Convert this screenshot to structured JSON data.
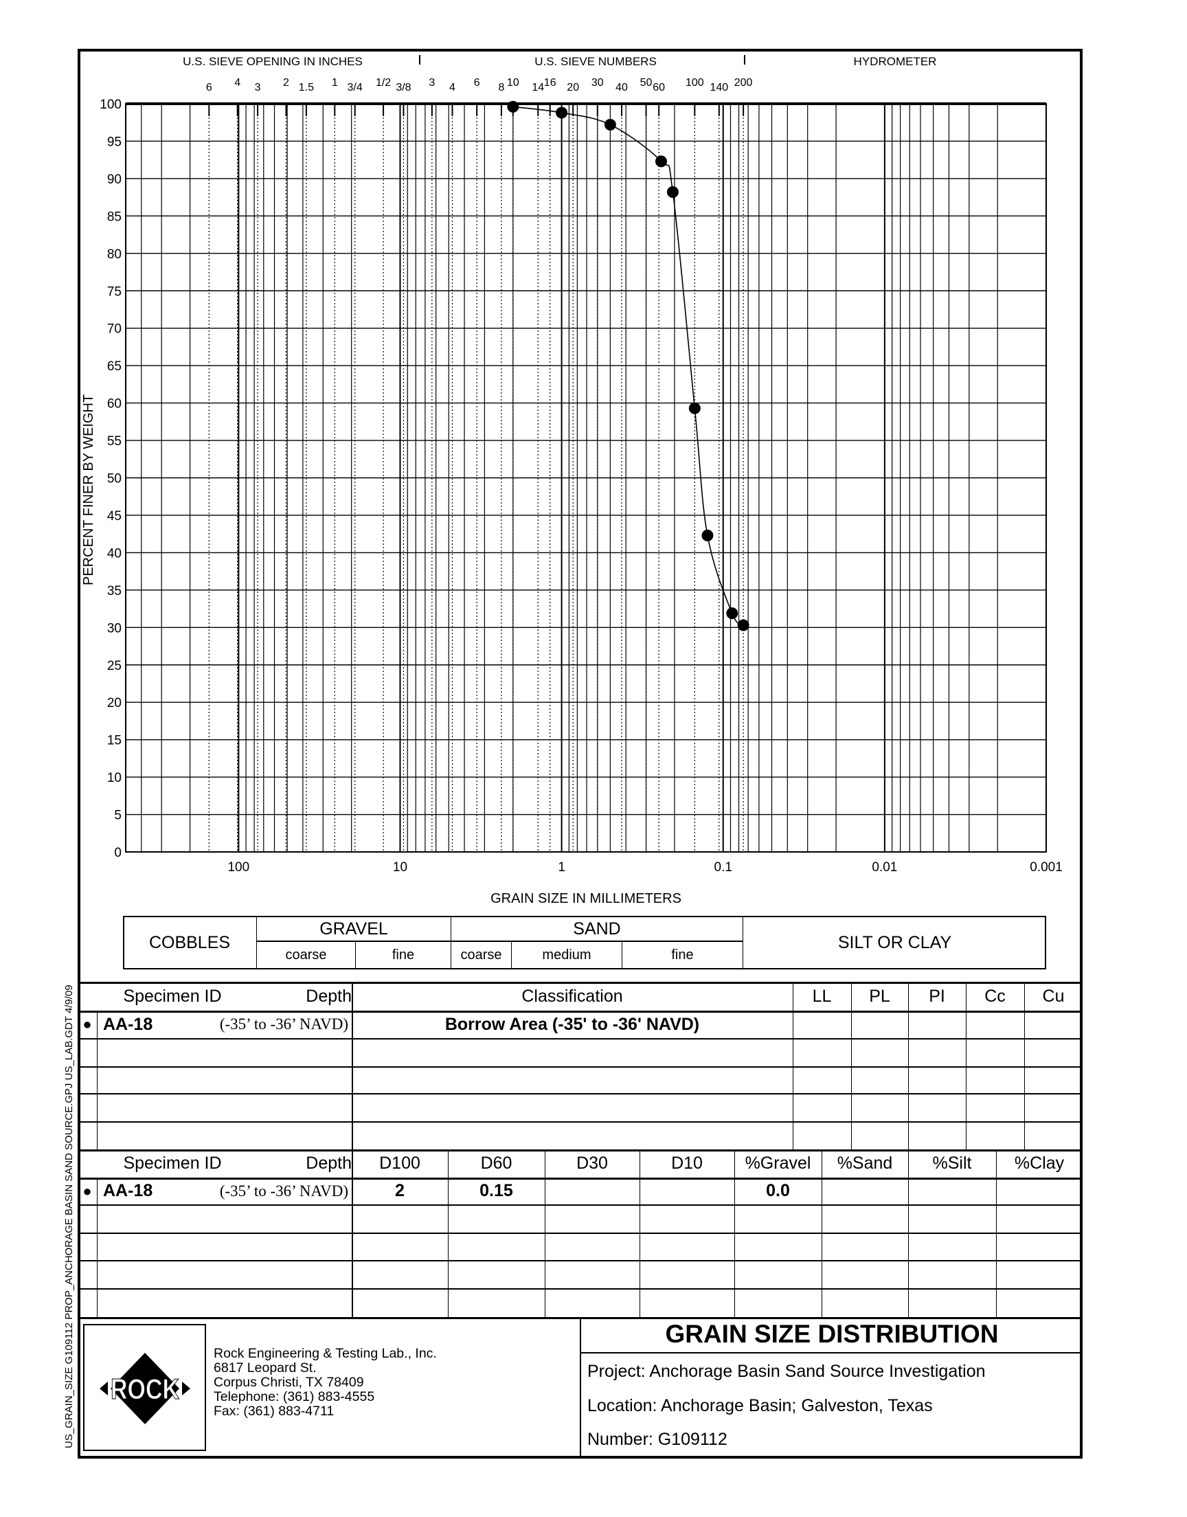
{
  "side_label": "US_GRAIN_SIZE  G109112 PROP_ANCHORAGE BASIN SAND SOURCE.GPJ  US_LAB.GDT  4/9/09",
  "chart_data": {
    "type": "line",
    "title": "GRAIN SIZE DISTRIBUTION",
    "xlabel": "GRAIN SIZE IN MILLIMETERS",
    "ylabel": "PERCENT FINER BY WEIGHT",
    "x_scale": "log",
    "x_reversed": true,
    "xlim": [
      500,
      0.001
    ],
    "ylim": [
      0,
      100
    ],
    "grid": true,
    "x_ticks": [
      100,
      10,
      1,
      0.1,
      0.01,
      0.001
    ],
    "x_tick_labels": [
      "100",
      "10",
      "1",
      "0.1",
      "0.01",
      "0.001"
    ],
    "y_ticks": [
      0,
      5,
      10,
      15,
      20,
      25,
      30,
      35,
      40,
      45,
      50,
      55,
      60,
      65,
      70,
      75,
      80,
      85,
      90,
      95,
      100
    ],
    "top_headers": [
      "U.S. SIEVE OPENING IN INCHES",
      "U.S. SIEVE NUMBERS",
      "HYDROMETER"
    ],
    "sieve_ticks": [
      {
        "label": "6",
        "mm": 152.4
      },
      {
        "label": "4",
        "mm": 101.6
      },
      {
        "label": "3",
        "mm": 76.2
      },
      {
        "label": "2",
        "mm": 50.8
      },
      {
        "label": "1.5",
        "mm": 38.1
      },
      {
        "label": "1",
        "mm": 25.4
      },
      {
        "label": "3/4",
        "mm": 19.05
      },
      {
        "label": "1/2",
        "mm": 12.7
      },
      {
        "label": "3/8",
        "mm": 9.525
      },
      {
        "label": "3",
        "mm": 6.35
      },
      {
        "label": "4",
        "mm": 4.75
      },
      {
        "label": "6",
        "mm": 3.35
      },
      {
        "label": "8",
        "mm": 2.36
      },
      {
        "label": "10",
        "mm": 2.0
      },
      {
        "label": "14",
        "mm": 1.4
      },
      {
        "label": "16",
        "mm": 1.18
      },
      {
        "label": "20",
        "mm": 0.85
      },
      {
        "label": "30",
        "mm": 0.6
      },
      {
        "label": "40",
        "mm": 0.425
      },
      {
        "label": "50",
        "mm": 0.3
      },
      {
        "label": "60",
        "mm": 0.25
      },
      {
        "label": "100",
        "mm": 0.15
      },
      {
        "label": "140",
        "mm": 0.106
      },
      {
        "label": "200",
        "mm": 0.075
      }
    ],
    "series": [
      {
        "name": "AA-18",
        "marker": "circle",
        "x": [
          2.0,
          1.0,
          0.5,
          0.242,
          0.205,
          0.15,
          0.125,
          0.088,
          0.075
        ],
        "y": [
          99.6,
          98.8,
          97.2,
          92.3,
          88.2,
          59.3,
          42.3,
          31.9,
          30.3
        ]
      }
    ]
  },
  "classification_bar": {
    "cobbles": "COBBLES",
    "gravel": "GRAVEL",
    "gravel_coarse": "coarse",
    "gravel_fine": "fine",
    "sand": "SAND",
    "sand_coarse": "coarse",
    "sand_medium": "medium",
    "sand_fine": "fine",
    "silt_clay": "SILT OR CLAY"
  },
  "table1": {
    "headers": {
      "specimen_id": "Specimen ID",
      "depth": "Depth",
      "classification": "Classification",
      "ll": "LL",
      "pl": "PL",
      "pi": "PI",
      "cc": "Cc",
      "cu": "Cu"
    },
    "rows": [
      {
        "marker": "●",
        "specimen_id": "AA-18",
        "depth": "(-35’ to -36’ NAVD)",
        "classification": "Borrow Area (-35' to -36' NAVD)",
        "ll": "",
        "pl": "",
        "pi": "",
        "cc": "",
        "cu": ""
      }
    ]
  },
  "table2": {
    "headers": {
      "specimen_id": "Specimen ID",
      "depth": "Depth",
      "d100": "D100",
      "d60": "D60",
      "d30": "D30",
      "d10": "D10",
      "gravel": "%Gravel",
      "sand": "%Sand",
      "silt": "%Silt",
      "clay": "%Clay"
    },
    "rows": [
      {
        "marker": "●",
        "specimen_id": "AA-18",
        "depth": "(-35’ to -36’ NAVD)",
        "d100": "2",
        "d60": "0.15",
        "d30": "",
        "d10": "",
        "gravel": "0.0",
        "sand": "",
        "silt": "",
        "clay": ""
      }
    ]
  },
  "footer": {
    "logo_text": "ROCK",
    "company": "Rock Engineering & Testing Lab., Inc.",
    "address1": "6817 Leopard St.",
    "address2": "Corpus Christi, TX 78409",
    "telephone": "Telephone:  (361) 883-4555",
    "fax": "Fax:  (361) 883-4711",
    "title": "GRAIN SIZE DISTRIBUTION",
    "project": "Project:  Anchorage Basin Sand Source Investigation",
    "location": "Location:  Anchorage Basin; Galveston, Texas",
    "number": "Number:  G109112"
  }
}
